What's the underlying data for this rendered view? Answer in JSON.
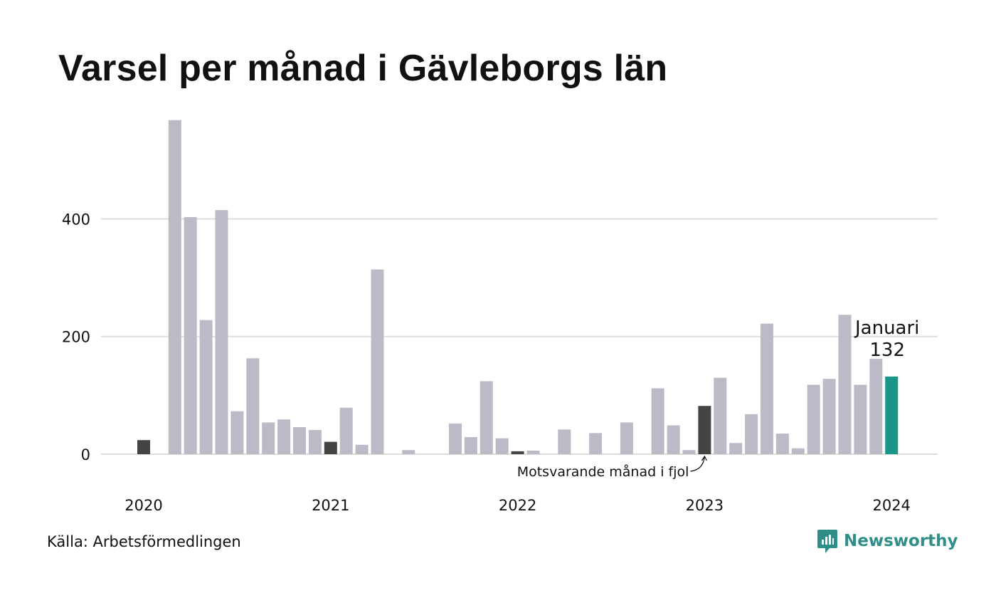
{
  "title": "Varsel per månad i Gävleborgs län",
  "source": "Källa: Arbetsförmedlingen",
  "brand": {
    "name": "Newsworthy",
    "icon": "newsworthy-logo-icon",
    "color": "#2f8f88"
  },
  "colors": {
    "bar": "#bcbac7",
    "previous_year": "#444444",
    "current": "#1a9688",
    "grid": "#dddddd"
  },
  "chart_data": {
    "type": "bar",
    "title": "Varsel per månad i Gävleborgs län",
    "xlabel": "",
    "ylabel": "",
    "ylim": [
      0,
      570
    ],
    "yticks": [
      0,
      200,
      400
    ],
    "grid": true,
    "x_tick_labels": [
      "2020",
      "2021",
      "2022",
      "2023",
      "2024"
    ],
    "categories": [
      "2020-01",
      "2020-02",
      "2020-03",
      "2020-04",
      "2020-05",
      "2020-06",
      "2020-07",
      "2020-08",
      "2020-09",
      "2020-10",
      "2020-11",
      "2020-12",
      "2021-01",
      "2021-02",
      "2021-03",
      "2021-04",
      "2021-05",
      "2021-06",
      "2021-07",
      "2021-08",
      "2021-09",
      "2021-10",
      "2021-11",
      "2021-12",
      "2022-01",
      "2022-02",
      "2022-03",
      "2022-04",
      "2022-05",
      "2022-06",
      "2022-07",
      "2022-08",
      "2022-09",
      "2022-10",
      "2022-11",
      "2022-12",
      "2023-01",
      "2023-02",
      "2023-03",
      "2023-04",
      "2023-05",
      "2023-06",
      "2023-07",
      "2023-08",
      "2023-09",
      "2023-10",
      "2023-11",
      "2023-12",
      "2024-01"
    ],
    "values": [
      24,
      0,
      568,
      403,
      228,
      415,
      73,
      163,
      54,
      59,
      46,
      41,
      21,
      79,
      16,
      314,
      0,
      7,
      0,
      0,
      52,
      29,
      124,
      27,
      5,
      6,
      0,
      42,
      0,
      36,
      0,
      54,
      0,
      112,
      49,
      7,
      82,
      130,
      19,
      68,
      222,
      35,
      10,
      118,
      128,
      237,
      118,
      162,
      132
    ],
    "highlight_previous_year": [
      "2020-01",
      "2021-01",
      "2022-01",
      "2023-01"
    ],
    "highlight_current": "2024-01",
    "annotations": {
      "current_label": "Januari",
      "current_value": "132",
      "previous_label": "Motsvarande månad i fjol"
    }
  }
}
